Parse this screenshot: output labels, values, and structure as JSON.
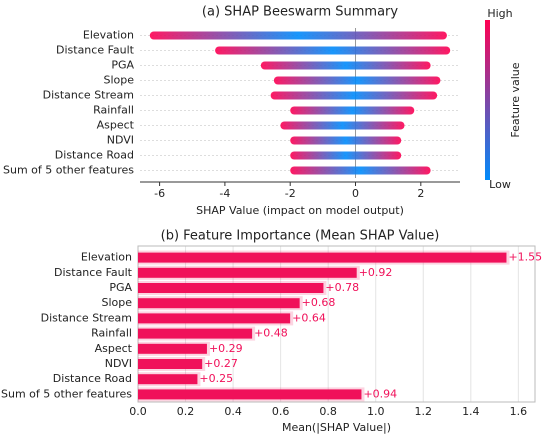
{
  "chart_data": [
    {
      "type": "beeswarm",
      "title": "(a) SHAP Beeswarm Summary",
      "x_label": "SHAP Value (impact on model output)",
      "categories": [
        "Elevation",
        "Distance Fault",
        "PGA",
        "Slope",
        "Distance Stream",
        "Rainfall",
        "Aspect",
        "NDVI",
        "Distance Road",
        "Sum of 5 other features"
      ],
      "min_values": [
        -6.3,
        -4.3,
        -2.9,
        -2.5,
        -2.6,
        -2.0,
        -2.3,
        -2.0,
        -2.0,
        -2.0
      ],
      "max_values": [
        2.8,
        2.9,
        2.3,
        2.6,
        2.5,
        1.8,
        1.5,
        1.4,
        1.4,
        2.3
      ],
      "xlim": [
        -6.6,
        3.2
      ],
      "xticks": [
        -6,
        -4,
        -2,
        0,
        2
      ],
      "high_color": "#ff0052",
      "low_color": "#008bfb",
      "colorbar_label": "Feature value",
      "colorbar_high": "High",
      "colorbar_low": "Low"
    },
    {
      "type": "hbar",
      "title": "(b) Feature Importance (Mean SHAP Value)",
      "x_label": "Mean(|SHAP Value|)",
      "categories": [
        "Elevation",
        "Distance Fault",
        "PGA",
        "Slope",
        "Distance Stream",
        "Rainfall",
        "Aspect",
        "NDVI",
        "Distance Road",
        "Sum of 5 other features"
      ],
      "values": [
        1.55,
        0.92,
        0.78,
        0.68,
        0.64,
        0.48,
        0.29,
        0.27,
        0.25,
        0.94
      ],
      "value_labels": [
        "+1.55",
        "+0.92",
        "+0.78",
        "+0.68",
        "+0.64",
        "+0.48",
        "+0.29",
        "+0.27",
        "+0.25",
        "+0.94"
      ],
      "color": "#f0115a",
      "xlim": [
        0,
        1.67
      ],
      "xticks": [
        {
          "value": 0,
          "label": "0.0"
        },
        0.2,
        0.4,
        0.6,
        0.8,
        {
          "value": 1,
          "label": "1.0"
        },
        1.2,
        1.4,
        1.6
      ]
    }
  ]
}
